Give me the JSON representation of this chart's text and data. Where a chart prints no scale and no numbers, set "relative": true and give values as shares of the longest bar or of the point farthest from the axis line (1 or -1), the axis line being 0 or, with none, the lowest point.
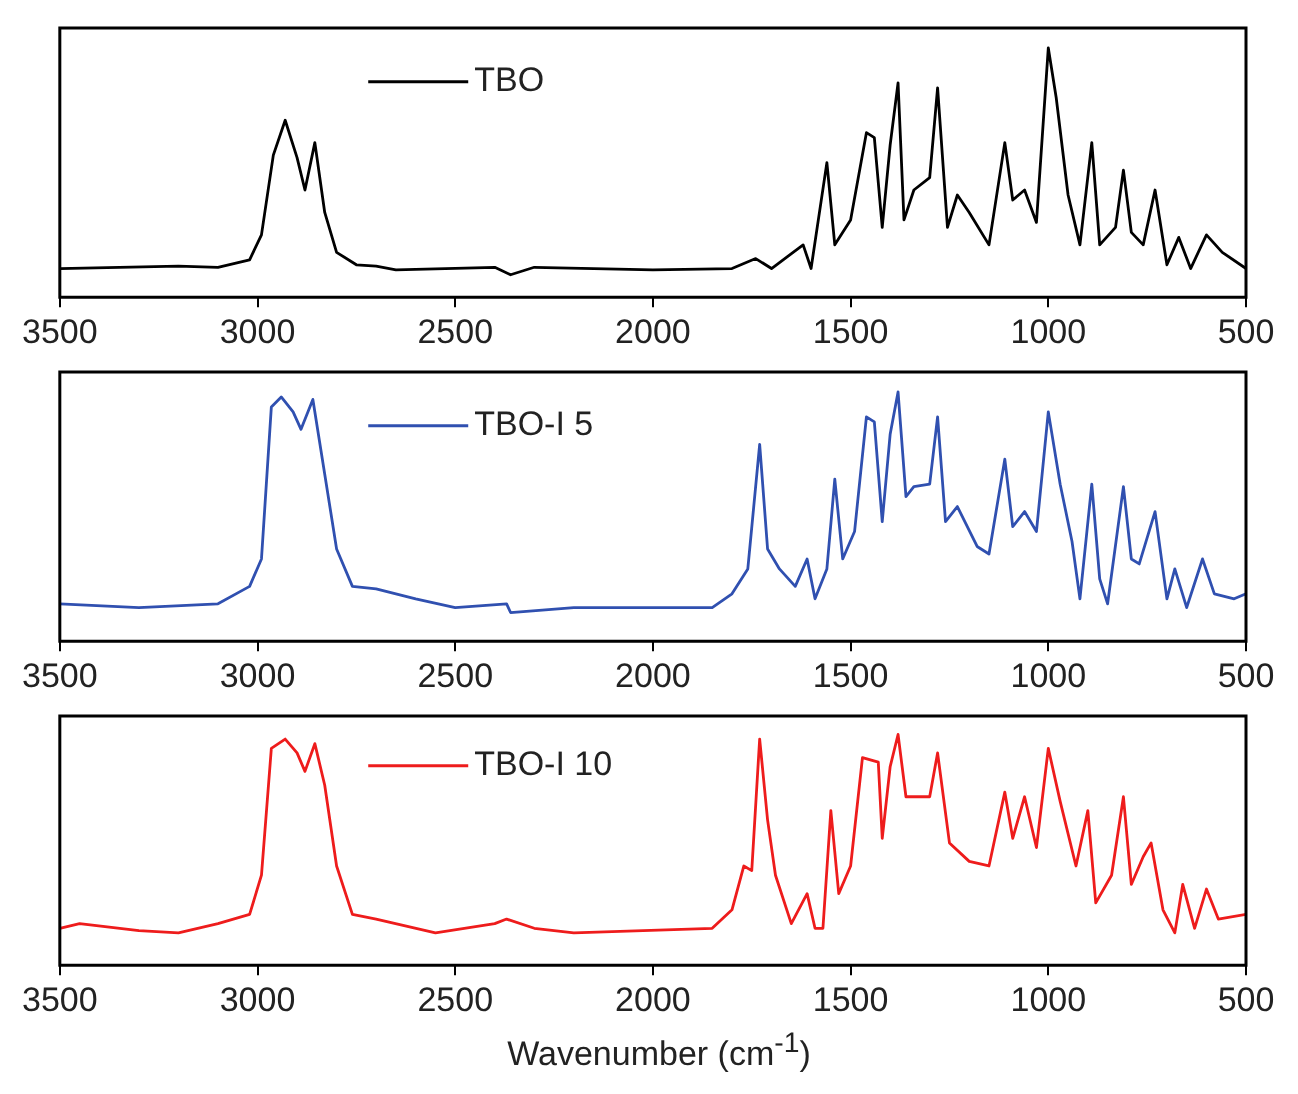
{
  "chart_data": [
    {
      "type": "line",
      "relative": true,
      "xlim": [
        3500,
        500
      ],
      "xticks": [
        3500,
        3000,
        2500,
        2000,
        1500,
        1000,
        500
      ],
      "legend": "top",
      "grid": false,
      "series": [
        {
          "name": "TBO",
          "color": "#000000",
          "x": [
            3500,
            3200,
            3100,
            3020,
            2990,
            2960,
            2930,
            2900,
            2880,
            2855,
            2830,
            2800,
            2750,
            2700,
            2650,
            2400,
            2360,
            2300,
            2000,
            1800,
            1740,
            1700,
            1620,
            1600,
            1560,
            1540,
            1500,
            1460,
            1440,
            1420,
            1400,
            1380,
            1365,
            1340,
            1300,
            1280,
            1255,
            1230,
            1200,
            1150,
            1110,
            1090,
            1060,
            1030,
            1000,
            980,
            950,
            920,
            890,
            870,
            830,
            810,
            790,
            760,
            730,
            700,
            670,
            640,
            600,
            560,
            500
          ],
          "values": [
            0.115,
            0.125,
            0.12,
            0.15,
            0.25,
            0.57,
            0.71,
            0.56,
            0.43,
            0.62,
            0.34,
            0.18,
            0.13,
            0.125,
            0.11,
            0.12,
            0.09,
            0.12,
            0.11,
            0.115,
            0.155,
            0.115,
            0.21,
            0.115,
            0.54,
            0.21,
            0.31,
            0.66,
            0.64,
            0.28,
            0.61,
            0.86,
            0.31,
            0.43,
            0.48,
            0.84,
            0.28,
            0.41,
            0.34,
            0.21,
            0.62,
            0.39,
            0.43,
            0.3,
            1.0,
            0.8,
            0.41,
            0.21,
            0.62,
            0.21,
            0.28,
            0.51,
            0.26,
            0.21,
            0.43,
            0.13,
            0.24,
            0.115,
            0.25,
            0.18,
            0.115
          ]
        }
      ]
    },
    {
      "type": "line",
      "relative": true,
      "xlim": [
        3500,
        500
      ],
      "xticks": [
        3500,
        3000,
        2500,
        2000,
        1500,
        1000,
        500
      ],
      "legend": "top",
      "grid": false,
      "series": [
        {
          "name": "TBO-I 5",
          "color": "#3050b0",
          "x": [
            3500,
            3300,
            3100,
            3020,
            2990,
            2965,
            2940,
            2910,
            2890,
            2860,
            2830,
            2800,
            2760,
            2700,
            2600,
            2500,
            2370,
            2360,
            2200,
            1850,
            1800,
            1760,
            1730,
            1710,
            1680,
            1640,
            1610,
            1590,
            1560,
            1540,
            1520,
            1490,
            1460,
            1440,
            1420,
            1400,
            1380,
            1360,
            1340,
            1300,
            1280,
            1260,
            1230,
            1180,
            1150,
            1110,
            1090,
            1060,
            1030,
            1000,
            970,
            940,
            920,
            890,
            870,
            850,
            810,
            790,
            770,
            730,
            700,
            680,
            650,
            610,
            580,
            530,
            500
          ],
          "values": [
            0.15,
            0.135,
            0.15,
            0.22,
            0.33,
            0.94,
            0.98,
            0.92,
            0.85,
            0.97,
            0.67,
            0.37,
            0.22,
            0.21,
            0.17,
            0.135,
            0.15,
            0.115,
            0.135,
            0.135,
            0.19,
            0.29,
            0.79,
            0.37,
            0.29,
            0.22,
            0.33,
            0.17,
            0.29,
            0.65,
            0.33,
            0.44,
            0.9,
            0.88,
            0.48,
            0.83,
            1.0,
            0.58,
            0.62,
            0.63,
            0.9,
            0.48,
            0.54,
            0.38,
            0.35,
            0.73,
            0.46,
            0.52,
            0.44,
            0.92,
            0.63,
            0.4,
            0.17,
            0.63,
            0.25,
            0.15,
            0.62,
            0.33,
            0.31,
            0.52,
            0.17,
            0.29,
            0.135,
            0.33,
            0.19,
            0.17,
            0.19
          ]
        }
      ]
    },
    {
      "type": "line",
      "relative": true,
      "xlim": [
        3500,
        500
      ],
      "xticks": [
        3500,
        3000,
        2500,
        2000,
        1500,
        1000,
        500
      ],
      "legend": "top",
      "grid": false,
      "xlabel": "Wavenumber (cm$^{-1}$)",
      "series": [
        {
          "name": "TBO-I 10",
          "color": "#ee1c1c",
          "x": [
            3500,
            3450,
            3300,
            3200,
            3100,
            3020,
            2990,
            2965,
            2930,
            2900,
            2880,
            2855,
            2830,
            2800,
            2760,
            2700,
            2550,
            2400,
            2370,
            2300,
            2200,
            1850,
            1800,
            1770,
            1750,
            1730,
            1710,
            1690,
            1650,
            1610,
            1590,
            1570,
            1550,
            1530,
            1500,
            1470,
            1430,
            1420,
            1400,
            1380,
            1360,
            1300,
            1280,
            1250,
            1200,
            1150,
            1110,
            1090,
            1060,
            1030,
            1000,
            970,
            930,
            900,
            880,
            840,
            810,
            790,
            760,
            740,
            710,
            680,
            660,
            630,
            600,
            570,
            500
          ],
          "values": [
            0.16,
            0.18,
            0.15,
            0.14,
            0.18,
            0.22,
            0.39,
            0.94,
            0.98,
            0.92,
            0.84,
            0.96,
            0.78,
            0.43,
            0.22,
            0.2,
            0.14,
            0.18,
            0.2,
            0.16,
            0.14,
            0.16,
            0.24,
            0.43,
            0.41,
            0.98,
            0.63,
            0.39,
            0.18,
            0.31,
            0.16,
            0.16,
            0.67,
            0.31,
            0.43,
            0.9,
            0.88,
            0.55,
            0.86,
            1.0,
            0.73,
            0.73,
            0.92,
            0.53,
            0.45,
            0.43,
            0.75,
            0.55,
            0.73,
            0.51,
            0.94,
            0.71,
            0.43,
            0.67,
            0.27,
            0.39,
            0.73,
            0.35,
            0.47,
            0.53,
            0.24,
            0.14,
            0.35,
            0.16,
            0.33,
            0.2,
            0.22
          ]
        }
      ]
    }
  ]
}
